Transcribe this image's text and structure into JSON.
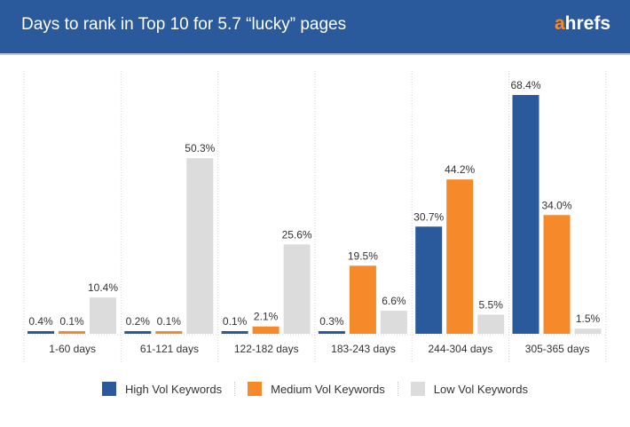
{
  "header": {
    "title": "Days to rank in Top 10 for 5.7 “lucky” pages",
    "logo": "ahrefs"
  },
  "chart_data": {
    "type": "bar",
    "title": "Days to rank in Top 10 for 5.7 “lucky” pages",
    "categories": [
      "1-60 days",
      "61-121 days",
      "122-182 days",
      "183-243 days",
      "244-304 days",
      "305-365 days"
    ],
    "series": [
      {
        "name": "High Vol Keywords",
        "color": "#2a5a9c",
        "values": [
          0.4,
          0.2,
          0.1,
          0.3,
          30.7,
          68.4
        ],
        "labels": [
          "0.4%",
          "0.2%",
          "0.1%",
          "0.3%",
          "30.7%",
          "68.4%"
        ]
      },
      {
        "name": "Medium Vol Keywords",
        "color": "#f6892a",
        "values": [
          0.1,
          0.1,
          2.1,
          19.5,
          44.2,
          34.0
        ],
        "labels": [
          "0.1%",
          "0.1%",
          "2.1%",
          "19.5%",
          "44.2%",
          "34.0%"
        ]
      },
      {
        "name": "Low Vol Keywords",
        "color": "#dcdcdc",
        "values": [
          10.4,
          50.3,
          25.6,
          6.6,
          5.5,
          1.5
        ],
        "labels": [
          "10.4%",
          "50.3%",
          "25.6%",
          "6.6%",
          "5.5%",
          "1.5%"
        ]
      }
    ],
    "ylim": [
      0,
      70
    ],
    "grid": "vertical dividers",
    "legend": "bottom"
  }
}
